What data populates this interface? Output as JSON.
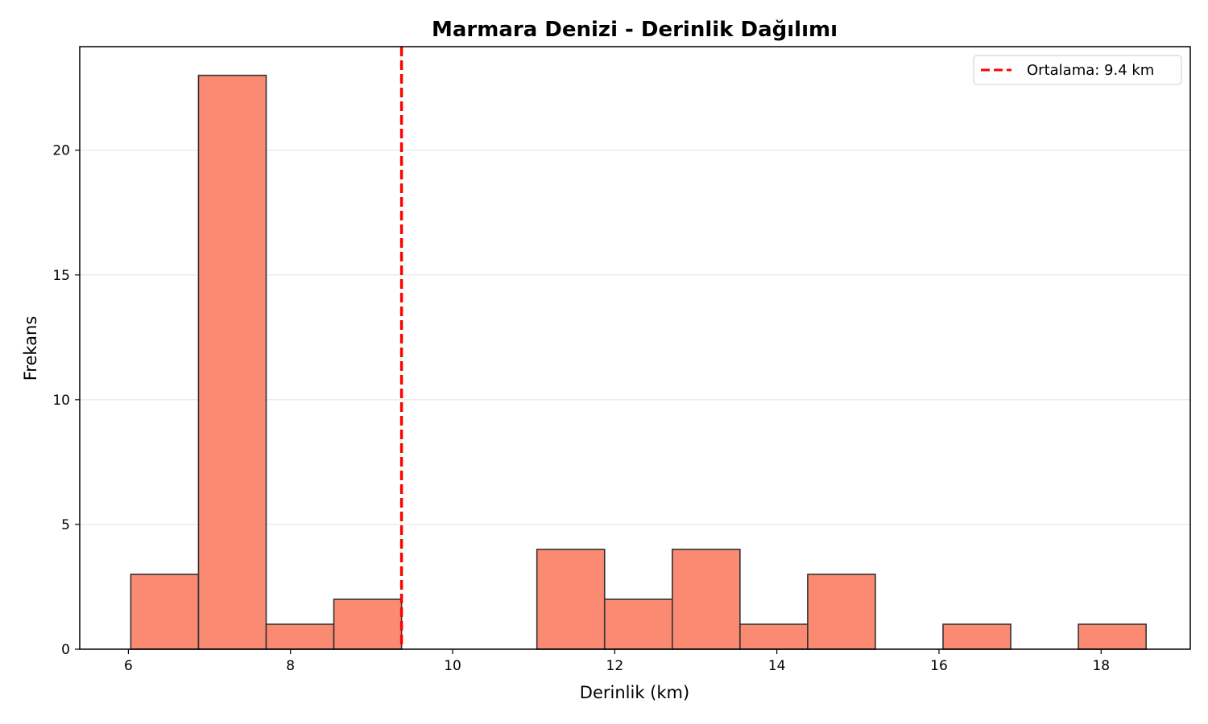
{
  "chart_data": {
    "type": "bar",
    "title": "Marmara Denizi - Derinlik Dağılımı",
    "xlabel": "Derinlik (km)",
    "ylabel": "Frekans",
    "xlim": [
      5.4,
      19.1
    ],
    "ylim": [
      0,
      24.15
    ],
    "xticks": [
      6,
      8,
      10,
      12,
      14,
      16,
      18
    ],
    "yticks": [
      0,
      5,
      10,
      15,
      20
    ],
    "grid": "y",
    "bin_edges": [
      6.03,
      6.865,
      7.7,
      8.535,
      9.37,
      10.205,
      11.04,
      11.875,
      12.71,
      13.545,
      14.38,
      15.215,
      16.05,
      16.885,
      17.72,
      18.555
    ],
    "counts": [
      3,
      23,
      1,
      2,
      0,
      0,
      4,
      2,
      4,
      1,
      3,
      0,
      1,
      0,
      1
    ],
    "bar_color": "#fa8a72",
    "bar_edge_color": "#333333",
    "mean_line": {
      "value": 9.37,
      "color": "#ff0000",
      "style": "dashed"
    },
    "legend": {
      "placement": "top-right",
      "entries": [
        {
          "label": "Ortalama: 9.4 km",
          "color": "#ff0000",
          "style": "dashed"
        }
      ]
    }
  }
}
